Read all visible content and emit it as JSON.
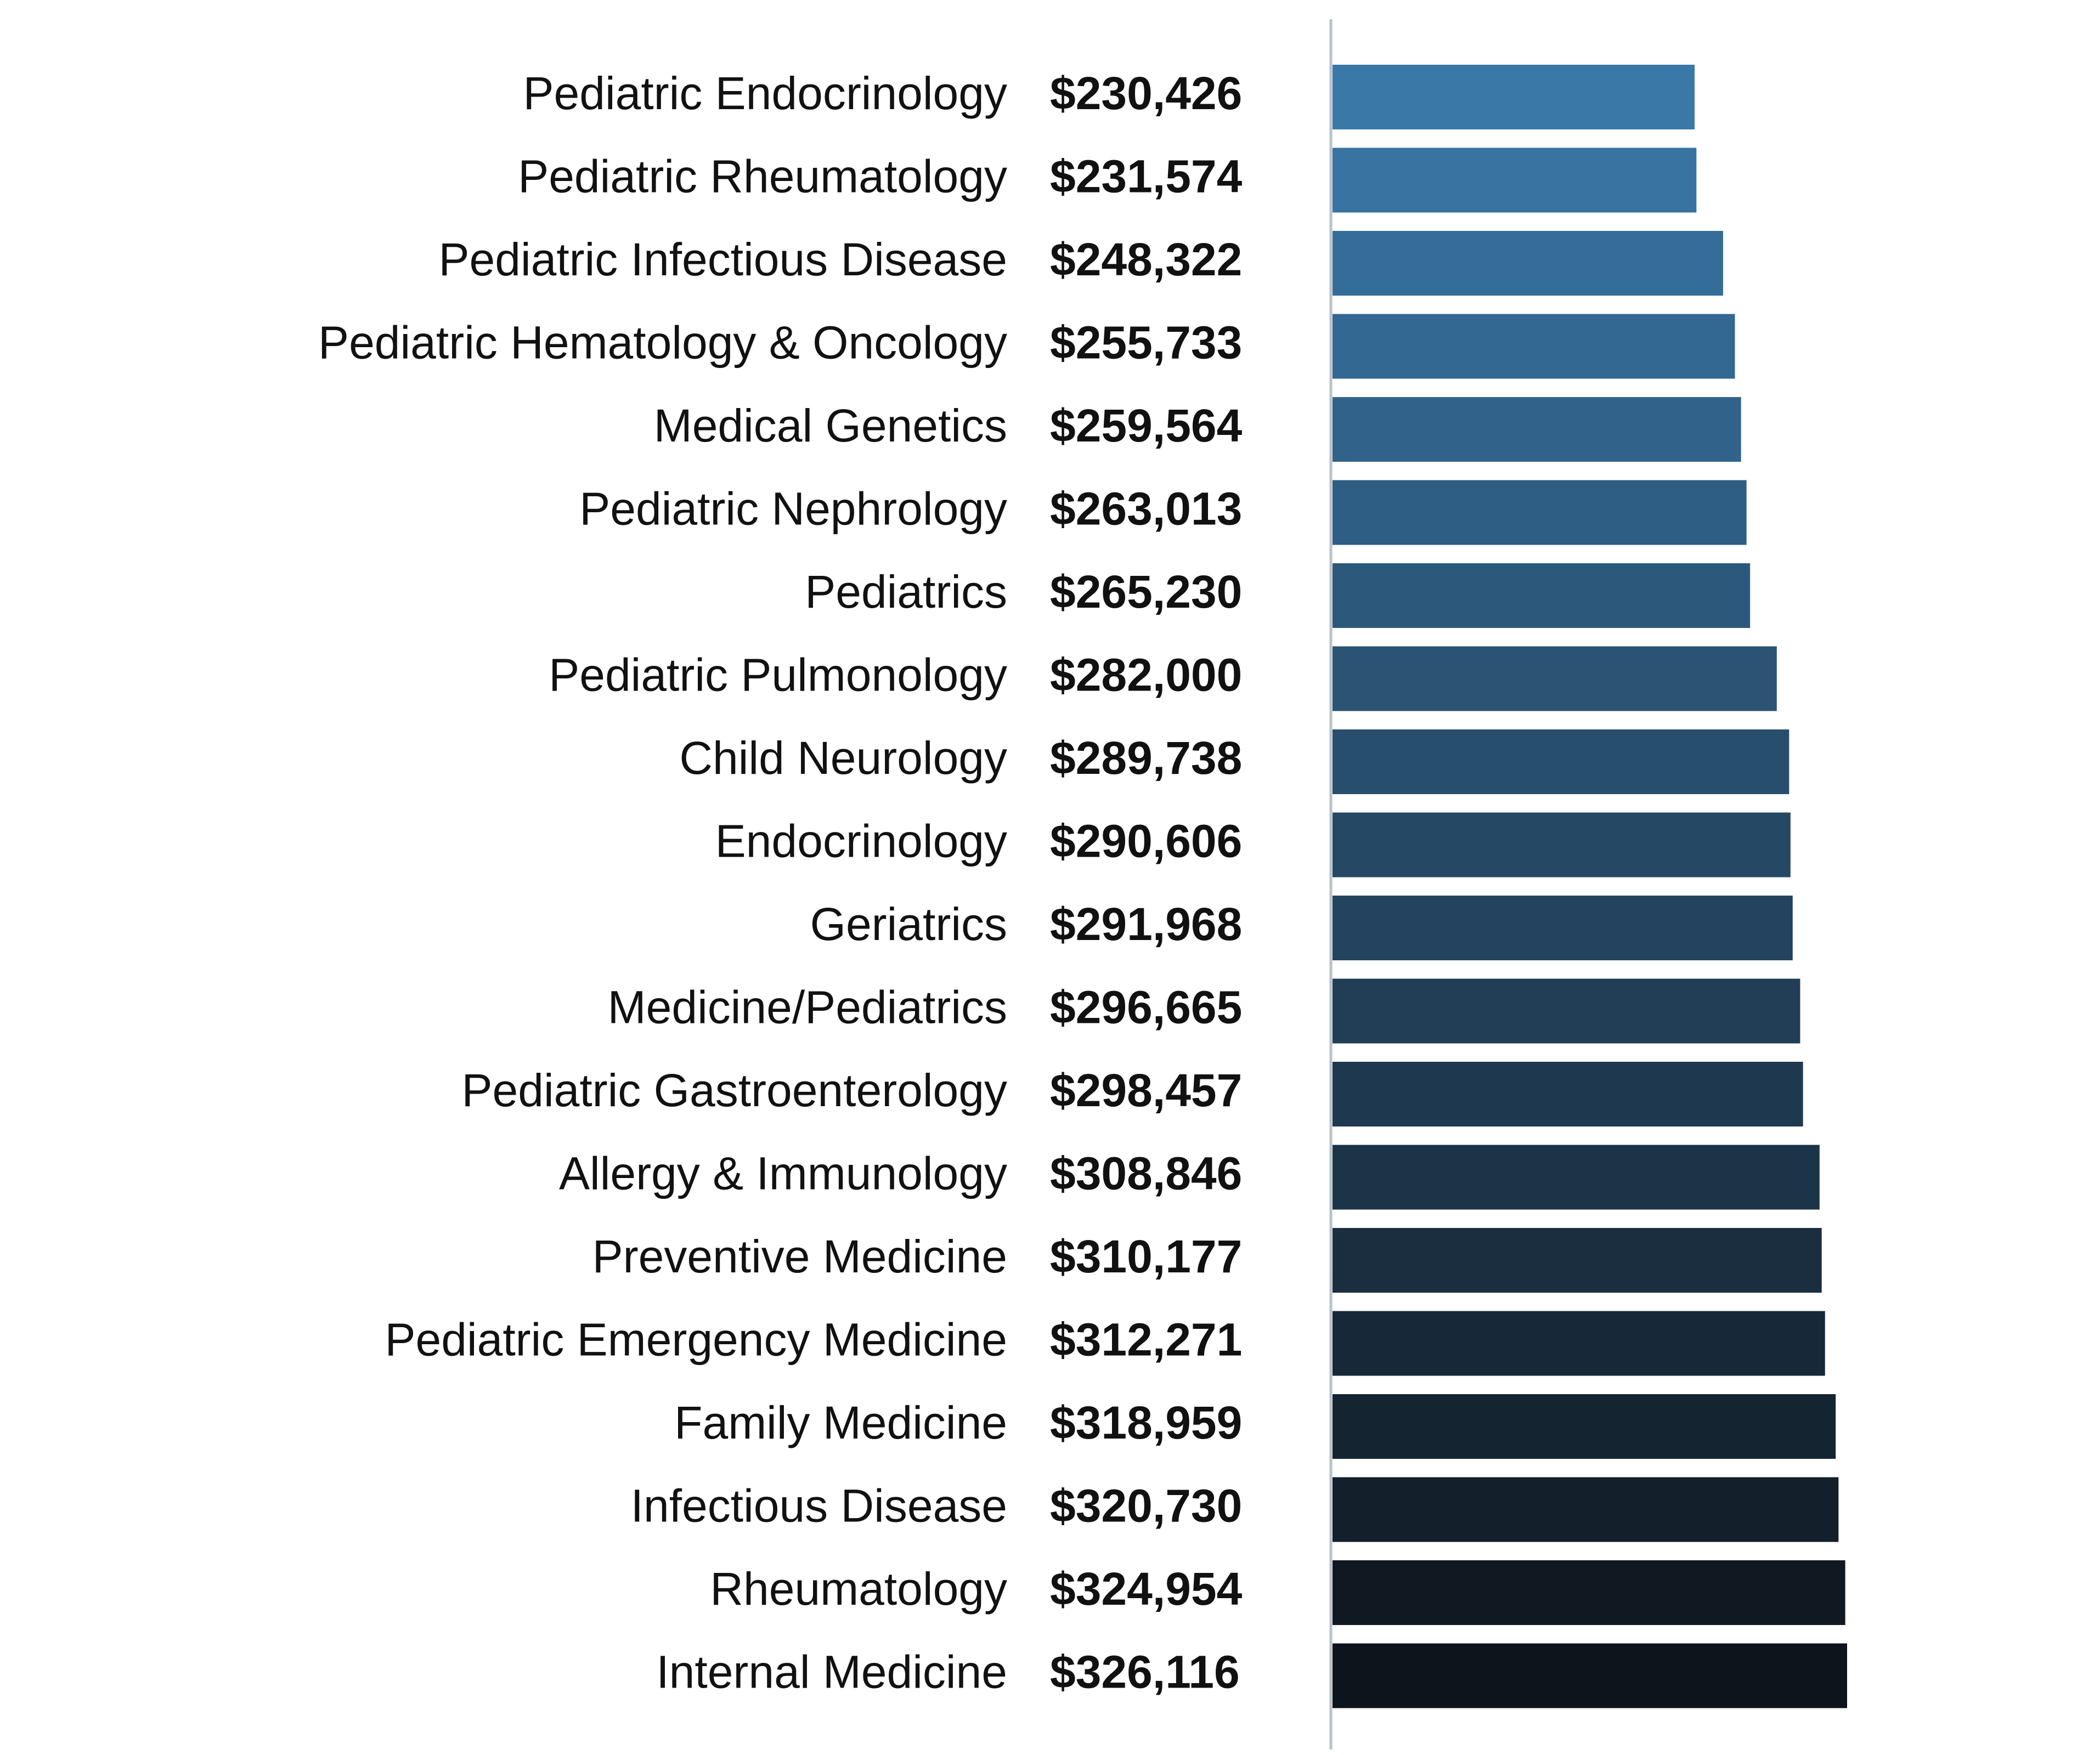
{
  "chart_data": {
    "type": "bar",
    "orientation": "horizontal",
    "categories": [
      "Pediatric Endocrinology",
      "Pediatric Rheumatology",
      "Pediatric Infectious Disease",
      "Pediatric Hematology & Oncology",
      "Medical Genetics",
      "Pediatric Nephrology",
      "Pediatrics",
      "Pediatric Pulmonology",
      "Child Neurology",
      "Endocrinology",
      "Geriatrics",
      "Medicine/Pediatrics",
      "Pediatric Gastroenterology",
      "Allergy & Immunology",
      "Preventive Medicine",
      "Pediatric Emergency Medicine",
      "Family Medicine",
      "Infectious Disease",
      "Rheumatology",
      "Internal Medicine"
    ],
    "values": [
      230426,
      231574,
      248322,
      255733,
      259564,
      263013,
      265230,
      282000,
      289738,
      290606,
      291968,
      296665,
      298457,
      308846,
      310177,
      312271,
      318959,
      320730,
      324954,
      326116
    ],
    "value_labels": [
      "$230,426",
      "$231,574",
      "$248,322",
      "$255,733",
      "$259,564",
      "$263,013",
      "$265,230",
      "$282,000",
      "$289,738",
      "$290,606",
      "$291,968",
      "$296,665",
      "$298,457",
      "$308,846",
      "$310,177",
      "$312,271",
      "$318,959",
      "$320,730",
      "$324,954",
      "$326,116"
    ],
    "xlim": [
      0,
      326116
    ],
    "grid": false,
    "legend": "none",
    "colors": {
      "start": "#3a78a8",
      "end": "#0e141b",
      "axis": "#b9c2cc"
    }
  }
}
